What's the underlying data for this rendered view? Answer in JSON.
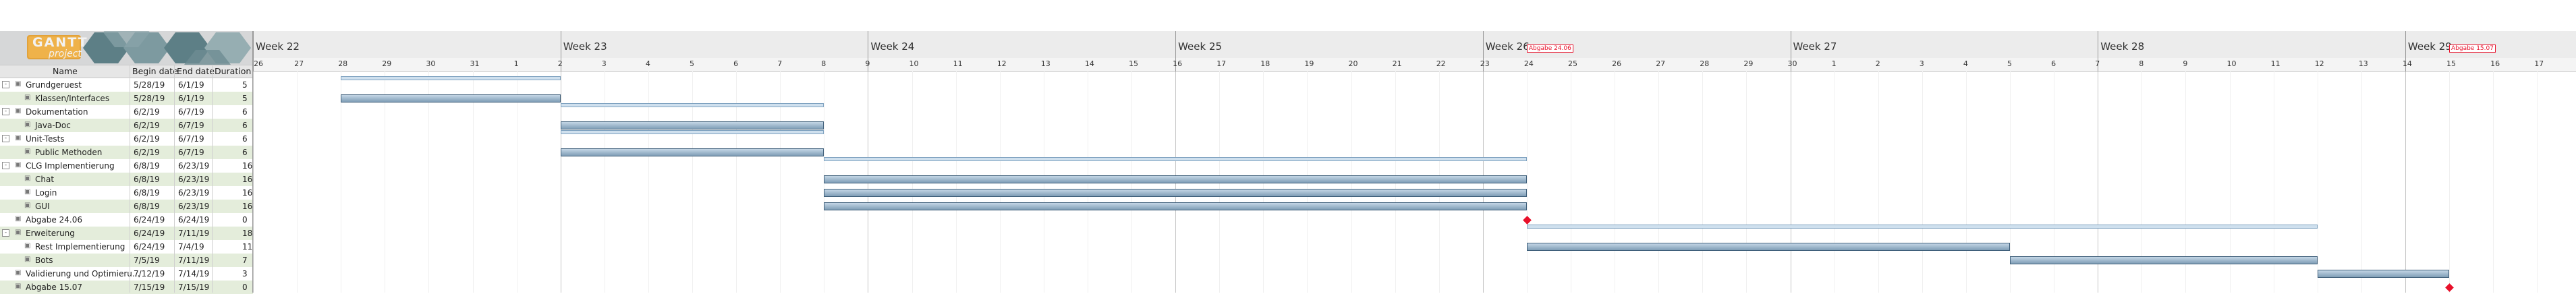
{
  "logo": {
    "text": "GANTT",
    "sub": "project"
  },
  "weeks": [
    "Week 22",
    "Week 23",
    "Week 24",
    "Week 25",
    "Week 26",
    "Week 27",
    "Week 28",
    "Week 29"
  ],
  "days": [
    "26",
    "27",
    "28",
    "29",
    "30",
    "31",
    "1",
    "2",
    "3",
    "4",
    "5",
    "6",
    "7",
    "8",
    "9",
    "10",
    "11",
    "12",
    "13",
    "14",
    "15",
    "16",
    "17",
    "18",
    "19",
    "20",
    "21",
    "22",
    "23",
    "24",
    "25",
    "26",
    "27",
    "28",
    "29",
    "30",
    "1",
    "2",
    "3",
    "4",
    "5",
    "6",
    "7",
    "8",
    "9",
    "10",
    "11",
    "12",
    "13",
    "14",
    "15",
    "16",
    "17"
  ],
  "columns": {
    "name": "Name",
    "begin": "Begin date",
    "end": "End date",
    "duration": "Duration"
  },
  "flags": [
    "Abgabe 24.06",
    "Abgabe 15.07"
  ],
  "tasks": [
    {
      "name": "Grundgeruest",
      "begin": "5/28/19",
      "end": "6/1/19",
      "duration": "5",
      "level": 0,
      "expand": "-"
    },
    {
      "name": "Klassen/Interfaces",
      "begin": "5/28/19",
      "end": "6/1/19",
      "duration": "5",
      "level": 1,
      "expand": ""
    },
    {
      "name": "Dokumentation",
      "begin": "6/2/19",
      "end": "6/7/19",
      "duration": "6",
      "level": 0,
      "expand": "-"
    },
    {
      "name": "Java-Doc",
      "begin": "6/2/19",
      "end": "6/7/19",
      "duration": "6",
      "level": 1,
      "expand": ""
    },
    {
      "name": "Unit-Tests",
      "begin": "6/2/19",
      "end": "6/7/19",
      "duration": "6",
      "level": 0,
      "expand": "-"
    },
    {
      "name": "Public Methoden",
      "begin": "6/2/19",
      "end": "6/7/19",
      "duration": "6",
      "level": 1,
      "expand": ""
    },
    {
      "name": "CLG Implementierung",
      "begin": "6/8/19",
      "end": "6/23/19",
      "duration": "16",
      "level": 0,
      "expand": "-"
    },
    {
      "name": "Chat",
      "begin": "6/8/19",
      "end": "6/23/19",
      "duration": "16",
      "level": 1,
      "expand": ""
    },
    {
      "name": "Login",
      "begin": "6/8/19",
      "end": "6/23/19",
      "duration": "16",
      "level": 1,
      "expand": ""
    },
    {
      "name": "GUI",
      "begin": "6/8/19",
      "end": "6/23/19",
      "duration": "16",
      "level": 1,
      "expand": ""
    },
    {
      "name": "Abgabe 24.06",
      "begin": "6/24/19",
      "end": "6/24/19",
      "duration": "0",
      "level": 0,
      "expand": ""
    },
    {
      "name": "Erweiterung",
      "begin": "6/24/19",
      "end": "7/11/19",
      "duration": "18",
      "level": 0,
      "expand": "-"
    },
    {
      "name": "Rest Implementierung",
      "begin": "6/24/19",
      "end": "7/4/19",
      "duration": "11",
      "level": 1,
      "expand": ""
    },
    {
      "name": "Bots",
      "begin": "7/5/19",
      "end": "7/11/19",
      "duration": "7",
      "level": 1,
      "expand": ""
    },
    {
      "name": "Validierung und Optimieru...",
      "begin": "7/12/19",
      "end": "7/14/19",
      "duration": "3",
      "level": 0,
      "expand": ""
    },
    {
      "name": "Abgabe 15.07",
      "begin": "7/15/19",
      "end": "7/15/19",
      "duration": "0",
      "level": 0,
      "expand": ""
    }
  ]
}
